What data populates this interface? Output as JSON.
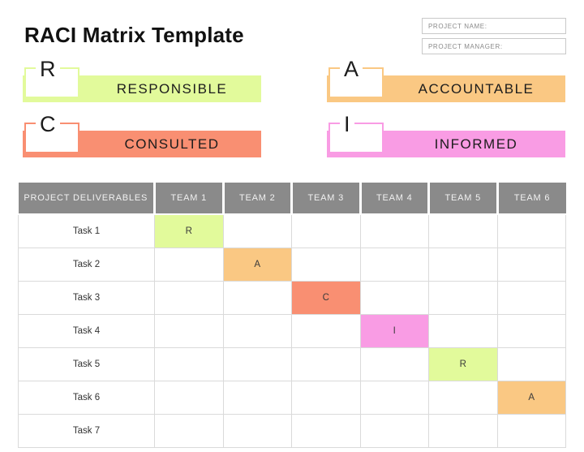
{
  "page": {
    "title": "RACI Matrix Template"
  },
  "project_fields": [
    {
      "label": "PROJECT NAME:"
    },
    {
      "label": "PROJECT MANAGER:"
    }
  ],
  "legend": [
    {
      "letter": "R",
      "label": "RESPONSIBLE",
      "color": "#e2fa9b"
    },
    {
      "letter": "A",
      "label": "ACCOUNTABLE",
      "color": "#fac883"
    },
    {
      "letter": "C",
      "label": "CONSULTED",
      "color": "#f98f72"
    },
    {
      "letter": "I",
      "label": "INFORMED",
      "color": "#f99ce4"
    }
  ],
  "table": {
    "header_bg": "#8a8a8a",
    "header_text_color": "#f1f1f1",
    "columns": [
      "PROJECT DELIVERABLES",
      "TEAM 1",
      "TEAM 2",
      "TEAM 3",
      "TEAM 4",
      "TEAM 5",
      "TEAM 6"
    ],
    "cell_colors": {
      "R": "#e2fa9b",
      "A": "#fac883",
      "C": "#f98f72",
      "I": "#f99ce4"
    },
    "rows": [
      {
        "task": "Task 1",
        "cells": [
          "R",
          "",
          "",
          "",
          "",
          ""
        ]
      },
      {
        "task": "Task 2",
        "cells": [
          "",
          "A",
          "",
          "",
          "",
          ""
        ]
      },
      {
        "task": "Task 3",
        "cells": [
          "",
          "",
          "C",
          "",
          "",
          ""
        ]
      },
      {
        "task": "Task 4",
        "cells": [
          "",
          "",
          "",
          "I",
          "",
          ""
        ]
      },
      {
        "task": "Task 5",
        "cells": [
          "",
          "",
          "",
          "",
          "R",
          ""
        ]
      },
      {
        "task": "Task 6",
        "cells": [
          "",
          "",
          "",
          "",
          "",
          "A"
        ]
      },
      {
        "task": "Task 7",
        "cells": [
          "",
          "",
          "",
          "",
          "",
          ""
        ]
      }
    ]
  }
}
